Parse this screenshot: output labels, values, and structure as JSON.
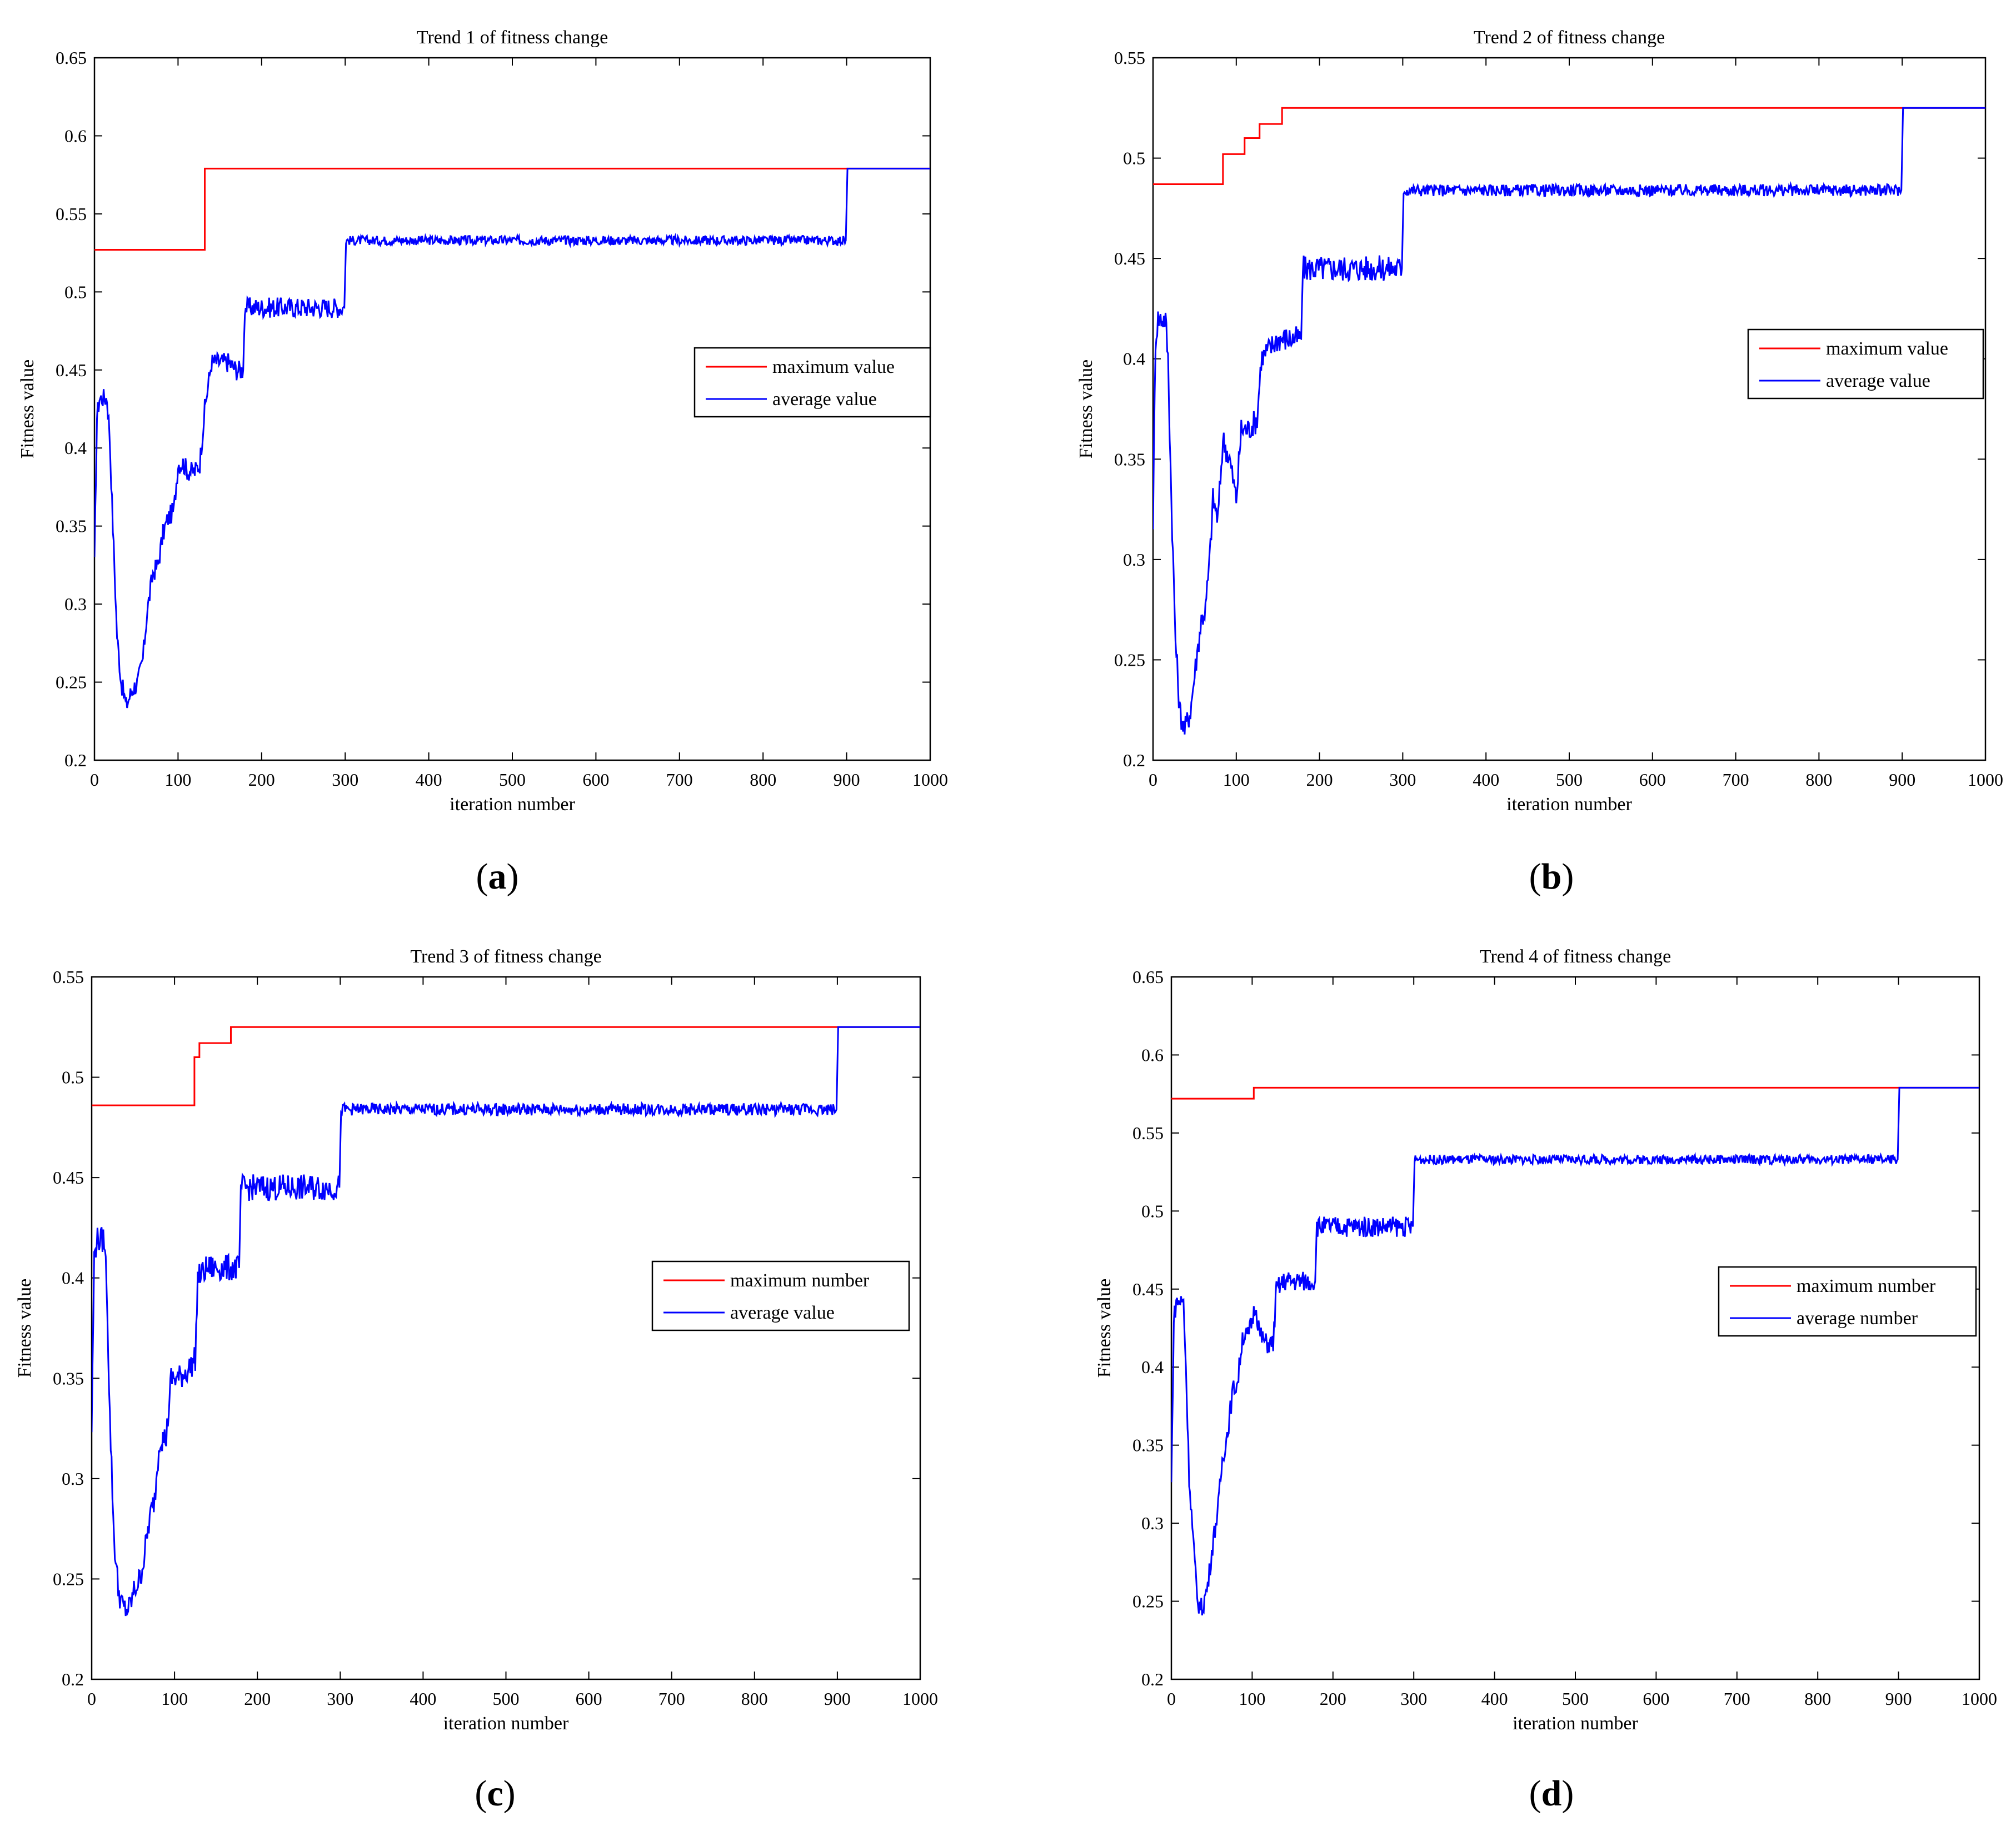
{
  "chart_data": [
    {
      "type": "line",
      "panel": "(a)",
      "panel_letter": "a",
      "title": "Trend 1 of fitness change",
      "xlabel": "iteration number",
      "ylabel": "Fitness value",
      "xlim": [
        0,
        1000
      ],
      "ylim": [
        0.2,
        0.65
      ],
      "xticks": [
        0,
        100,
        200,
        300,
        400,
        500,
        600,
        700,
        800,
        900,
        1000
      ],
      "yticks": [
        0.2,
        0.25,
        0.3,
        0.35,
        0.4,
        0.45,
        0.5,
        0.55,
        0.6,
        0.65
      ],
      "legend_position": "right",
      "series": [
        {
          "name": "maximum value",
          "color": "#ff0000",
          "steps": [
            [
              0,
              0.527
            ],
            [
              132,
              0.579
            ],
            [
              1000,
              0.579
            ]
          ]
        },
        {
          "name": "average value",
          "color": "#0000ff",
          "points": [
            [
              0,
              0.325
            ],
            [
              3,
              0.42
            ],
            [
              6,
              0.432
            ],
            [
              15,
              0.432
            ],
            [
              18,
              0.41
            ],
            [
              22,
              0.35
            ],
            [
              27,
              0.28
            ],
            [
              32,
              0.25
            ],
            [
              38,
              0.235
            ],
            [
              45,
              0.245
            ],
            [
              52,
              0.25
            ],
            [
              58,
              0.265
            ],
            [
              63,
              0.295
            ],
            [
              70,
              0.32
            ],
            [
              76,
              0.325
            ],
            [
              82,
              0.345
            ],
            [
              88,
              0.355
            ],
            [
              95,
              0.36
            ],
            [
              100,
              0.39
            ],
            [
              106,
              0.39
            ],
            [
              112,
              0.385
            ],
            [
              120,
              0.385
            ],
            [
              126,
              0.39
            ],
            [
              132,
              0.425
            ],
            [
              136,
              0.44
            ],
            [
              140,
              0.455
            ],
            [
              150,
              0.455
            ],
            [
              160,
              0.455
            ],
            [
              170,
              0.45
            ],
            [
              178,
              0.45
            ],
            [
              180,
              0.49
            ],
            [
              220,
              0.49
            ],
            [
              260,
              0.49
            ],
            [
              299,
              0.49
            ],
            [
              301,
              0.533
            ],
            [
              500,
              0.533
            ],
            [
              700,
              0.533
            ],
            [
              899,
              0.533
            ],
            [
              901,
              0.579
            ],
            [
              1000,
              0.579
            ]
          ],
          "noise": 0.003
        }
      ]
    },
    {
      "type": "line",
      "panel": "(b)",
      "panel_letter": "b",
      "title": "Trend 2 of fitness change",
      "xlabel": "iteration number",
      "ylabel": "Fitness value",
      "xlim": [
        0,
        1000
      ],
      "ylim": [
        0.2,
        0.55
      ],
      "xticks": [
        0,
        100,
        200,
        300,
        400,
        500,
        600,
        700,
        800,
        900,
        1000
      ],
      "yticks": [
        0.2,
        0.25,
        0.3,
        0.35,
        0.4,
        0.45,
        0.5,
        0.55
      ],
      "legend_position": "right",
      "series": [
        {
          "name": "maximum value",
          "color": "#ff0000",
          "steps": [
            [
              0,
              0.487
            ],
            [
              84,
              0.502
            ],
            [
              110,
              0.51
            ],
            [
              128,
              0.517
            ],
            [
              155,
              0.525
            ],
            [
              1000,
              0.525
            ]
          ]
        },
        {
          "name": "average value",
          "color": "#0000ff",
          "points": [
            [
              0,
              0.32
            ],
            [
              3,
              0.41
            ],
            [
              6,
              0.42
            ],
            [
              15,
              0.42
            ],
            [
              18,
              0.4
            ],
            [
              22,
              0.33
            ],
            [
              27,
              0.26
            ],
            [
              32,
              0.225
            ],
            [
              38,
              0.215
            ],
            [
              45,
              0.225
            ],
            [
              52,
              0.25
            ],
            [
              58,
              0.27
            ],
            [
              63,
              0.275
            ],
            [
              68,
              0.3
            ],
            [
              72,
              0.33
            ],
            [
              78,
              0.32
            ],
            [
              84,
              0.36
            ],
            [
              92,
              0.35
            ],
            [
              100,
              0.33
            ],
            [
              106,
              0.365
            ],
            [
              115,
              0.365
            ],
            [
              125,
              0.37
            ],
            [
              130,
              0.4
            ],
            [
              140,
              0.405
            ],
            [
              150,
              0.41
            ],
            [
              160,
              0.41
            ],
            [
              170,
              0.41
            ],
            [
              178,
              0.41
            ],
            [
              180,
              0.445
            ],
            [
              220,
              0.445
            ],
            [
              260,
              0.445
            ],
            [
              299,
              0.445
            ],
            [
              301,
              0.484
            ],
            [
              500,
              0.484
            ],
            [
              700,
              0.484
            ],
            [
              899,
              0.484
            ],
            [
              901,
              0.525
            ],
            [
              1000,
              0.525
            ]
          ],
          "noise": 0.003
        }
      ]
    },
    {
      "type": "line",
      "panel": "(c)",
      "panel_letter": "c",
      "title": "Trend 3 of fitness change",
      "xlabel": "iteration number",
      "ylabel": "Fitness value",
      "xlim": [
        0,
        1000
      ],
      "ylim": [
        0.2,
        0.55
      ],
      "xticks": [
        0,
        100,
        200,
        300,
        400,
        500,
        600,
        700,
        800,
        900,
        1000
      ],
      "yticks": [
        0.2,
        0.25,
        0.3,
        0.35,
        0.4,
        0.45,
        0.5,
        0.55
      ],
      "legend_position": "right",
      "series": [
        {
          "name": "maximum number",
          "color": "#ff0000",
          "steps": [
            [
              0,
              0.486
            ],
            [
              124,
              0.51
            ],
            [
              130,
              0.517
            ],
            [
              168,
              0.525
            ],
            [
              1000,
              0.525
            ]
          ]
        },
        {
          "name": "average value",
          "color": "#0000ff",
          "points": [
            [
              0,
              0.325
            ],
            [
              3,
              0.41
            ],
            [
              6,
              0.419
            ],
            [
              15,
              0.419
            ],
            [
              18,
              0.4
            ],
            [
              22,
              0.33
            ],
            [
              27,
              0.27
            ],
            [
              32,
              0.245
            ],
            [
              38,
              0.235
            ],
            [
              45,
              0.235
            ],
            [
              52,
              0.245
            ],
            [
              58,
              0.25
            ],
            [
              63,
              0.26
            ],
            [
              70,
              0.28
            ],
            [
              76,
              0.29
            ],
            [
              82,
              0.32
            ],
            [
              90,
              0.32
            ],
            [
              96,
              0.35
            ],
            [
              105,
              0.35
            ],
            [
              118,
              0.355
            ],
            [
              125,
              0.36
            ],
            [
              128,
              0.4
            ],
            [
              140,
              0.405
            ],
            [
              160,
              0.405
            ],
            [
              175,
              0.405
            ],
            [
              178,
              0.405
            ],
            [
              180,
              0.445
            ],
            [
              220,
              0.445
            ],
            [
              260,
              0.445
            ],
            [
              299,
              0.445
            ],
            [
              301,
              0.484
            ],
            [
              500,
              0.484
            ],
            [
              700,
              0.484
            ],
            [
              899,
              0.484
            ],
            [
              901,
              0.525
            ],
            [
              1000,
              0.525
            ]
          ],
          "noise": 0.003
        }
      ]
    },
    {
      "type": "line",
      "panel": "(d)",
      "panel_letter": "d",
      "title": "Trend 4 of fitness change",
      "xlabel": "iteration number",
      "ylabel": "Fitness value",
      "xlim": [
        0,
        1000
      ],
      "ylim": [
        0.2,
        0.65
      ],
      "xticks": [
        0,
        100,
        200,
        300,
        400,
        500,
        600,
        700,
        800,
        900,
        1000
      ],
      "yticks": [
        0.2,
        0.25,
        0.3,
        0.35,
        0.4,
        0.45,
        0.5,
        0.55,
        0.6,
        0.65
      ],
      "legend_position": "right",
      "series": [
        {
          "name": "maximum number",
          "color": "#ff0000",
          "steps": [
            [
              0,
              0.572
            ],
            [
              102,
              0.579
            ],
            [
              1000,
              0.579
            ]
          ]
        },
        {
          "name": "average number",
          "color": "#0000ff",
          "points": [
            [
              0,
              0.325
            ],
            [
              3,
              0.43
            ],
            [
              6,
              0.442
            ],
            [
              15,
              0.442
            ],
            [
              18,
              0.4
            ],
            [
              22,
              0.33
            ],
            [
              27,
              0.29
            ],
            [
              32,
              0.25
            ],
            [
              38,
              0.245
            ],
            [
              45,
              0.26
            ],
            [
              52,
              0.29
            ],
            [
              58,
              0.31
            ],
            [
              63,
              0.34
            ],
            [
              70,
              0.36
            ],
            [
              76,
              0.385
            ],
            [
              82,
              0.39
            ],
            [
              88,
              0.42
            ],
            [
              95,
              0.42
            ],
            [
              100,
              0.43
            ],
            [
              104,
              0.44
            ],
            [
              110,
              0.42
            ],
            [
              118,
              0.415
            ],
            [
              126,
              0.415
            ],
            [
              130,
              0.45
            ],
            [
              140,
              0.455
            ],
            [
              160,
              0.455
            ],
            [
              175,
              0.455
            ],
            [
              178,
              0.455
            ],
            [
              180,
              0.49
            ],
            [
              220,
              0.49
            ],
            [
              260,
              0.49
            ],
            [
              299,
              0.49
            ],
            [
              301,
              0.533
            ],
            [
              500,
              0.533
            ],
            [
              700,
              0.533
            ],
            [
              899,
              0.533
            ],
            [
              901,
              0.579
            ],
            [
              1000,
              0.579
            ]
          ],
          "noise": 0.003
        }
      ]
    }
  ]
}
